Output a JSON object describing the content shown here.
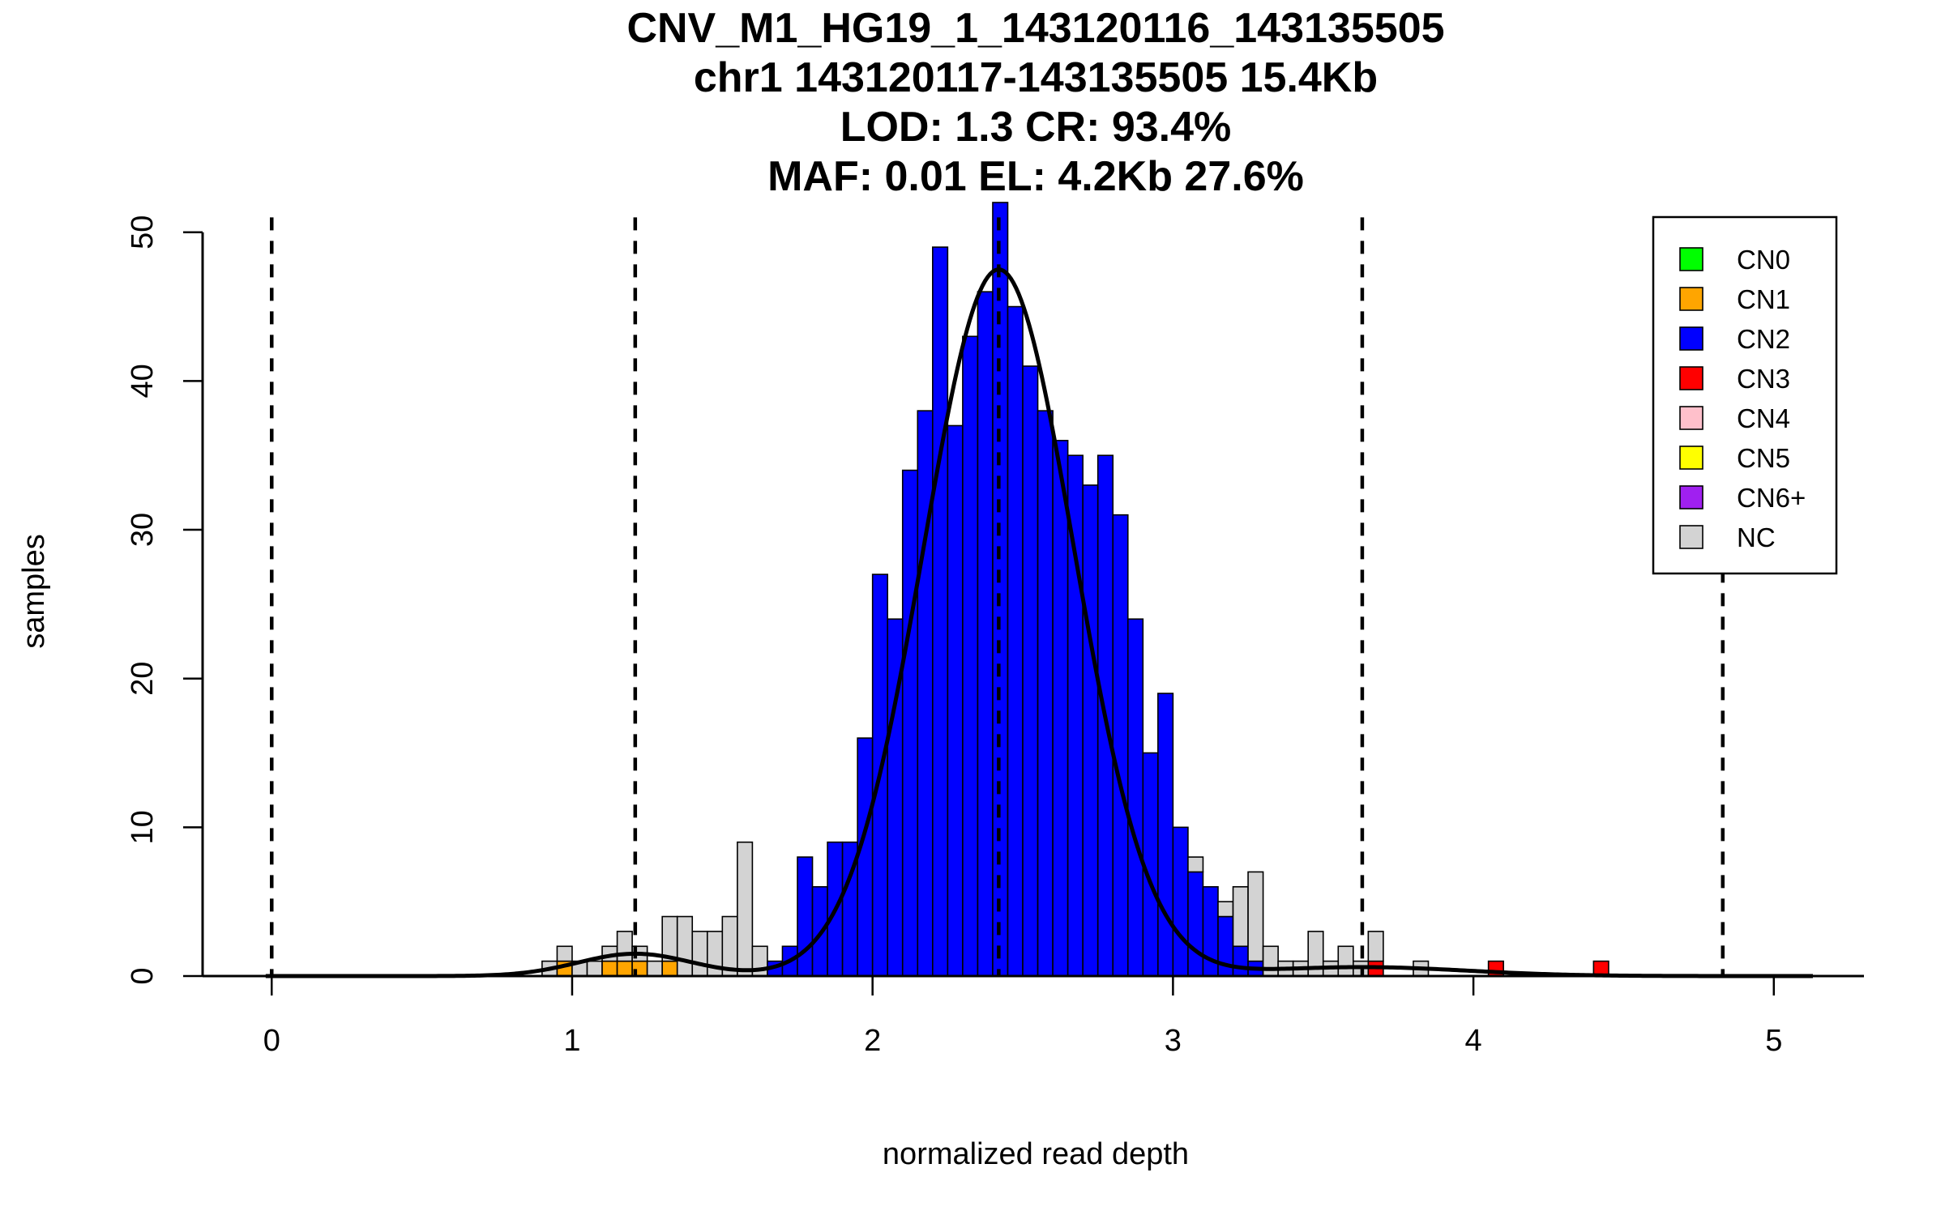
{
  "chart_data": {
    "type": "histogram",
    "title_lines": [
      "CNV_M1_HG19_1_143120116_143135505",
      "chr1 143120117-143135505 15.4Kb",
      "LOD: 1.3 CR: 93.4%",
      "MAF: 0.01 EL: 4.2Kb 27.6%"
    ],
    "xlabel": "normalized read depth",
    "ylabel": "samples",
    "xlim": [
      -0.23,
      5.3
    ],
    "ylim": [
      0,
      52
    ],
    "xticks": [
      0,
      1,
      2,
      3,
      4,
      5
    ],
    "yticks": [
      0,
      10,
      20,
      30,
      40,
      50
    ],
    "bin_width": 0.05,
    "colors": {
      "CN0": "#00ff00",
      "CN1": "#ffa500",
      "CN2": "#0000ff",
      "CN3": "#ff0000",
      "CN4": "#ffc0cb",
      "CN5": "#ffff00",
      "CN6+": "#a020f0",
      "NC": "#d3d3d3"
    },
    "legend": {
      "position": "top-right",
      "entries": [
        "CN0",
        "CN1",
        "CN2",
        "CN3",
        "CN4",
        "CN5",
        "CN6+",
        "NC"
      ]
    },
    "vlines": [
      0,
      1.21,
      2.42,
      3.63,
      4.83
    ],
    "bins": [
      {
        "x0": 0.9,
        "counts": {
          "NC": 1
        }
      },
      {
        "x0": 0.95,
        "counts": {
          "CN1": 1,
          "NC": 1
        }
      },
      {
        "x0": 1.0,
        "counts": {
          "NC": 1
        }
      },
      {
        "x0": 1.05,
        "counts": {
          "NC": 1
        }
      },
      {
        "x0": 1.1,
        "counts": {
          "CN1": 1,
          "NC": 1
        }
      },
      {
        "x0": 1.15,
        "counts": {
          "CN1": 1,
          "NC": 2
        }
      },
      {
        "x0": 1.2,
        "counts": {
          "CN1": 1,
          "NC": 1
        }
      },
      {
        "x0": 1.25,
        "counts": {
          "NC": 1
        }
      },
      {
        "x0": 1.3,
        "counts": {
          "CN1": 1,
          "NC": 3
        }
      },
      {
        "x0": 1.35,
        "counts": {
          "NC": 4
        }
      },
      {
        "x0": 1.4,
        "counts": {
          "NC": 3
        }
      },
      {
        "x0": 1.45,
        "counts": {
          "NC": 3
        }
      },
      {
        "x0": 1.5,
        "counts": {
          "NC": 4
        }
      },
      {
        "x0": 1.55,
        "counts": {
          "NC": 9
        }
      },
      {
        "x0": 1.6,
        "counts": {
          "NC": 2
        }
      },
      {
        "x0": 1.65,
        "counts": {
          "CN2": 1
        }
      },
      {
        "x0": 1.7,
        "counts": {
          "CN2": 2
        }
      },
      {
        "x0": 1.75,
        "counts": {
          "CN2": 8
        }
      },
      {
        "x0": 1.8,
        "counts": {
          "CN2": 6
        }
      },
      {
        "x0": 1.85,
        "counts": {
          "CN2": 9
        }
      },
      {
        "x0": 1.9,
        "counts": {
          "CN2": 9
        }
      },
      {
        "x0": 1.95,
        "counts": {
          "CN2": 16
        }
      },
      {
        "x0": 2.0,
        "counts": {
          "CN2": 27
        }
      },
      {
        "x0": 2.05,
        "counts": {
          "CN2": 24
        }
      },
      {
        "x0": 2.1,
        "counts": {
          "CN2": 34
        }
      },
      {
        "x0": 2.15,
        "counts": {
          "CN2": 38
        }
      },
      {
        "x0": 2.2,
        "counts": {
          "CN2": 49
        }
      },
      {
        "x0": 2.25,
        "counts": {
          "CN2": 37
        }
      },
      {
        "x0": 2.3,
        "counts": {
          "CN2": 43
        }
      },
      {
        "x0": 2.35,
        "counts": {
          "CN2": 46
        }
      },
      {
        "x0": 2.4,
        "counts": {
          "CN2": 52
        }
      },
      {
        "x0": 2.45,
        "counts": {
          "CN2": 45
        }
      },
      {
        "x0": 2.5,
        "counts": {
          "CN2": 41
        }
      },
      {
        "x0": 2.55,
        "counts": {
          "CN2": 38
        }
      },
      {
        "x0": 2.6,
        "counts": {
          "CN2": 36
        }
      },
      {
        "x0": 2.65,
        "counts": {
          "CN2": 35
        }
      },
      {
        "x0": 2.7,
        "counts": {
          "CN2": 33
        }
      },
      {
        "x0": 2.75,
        "counts": {
          "CN2": 35
        }
      },
      {
        "x0": 2.8,
        "counts": {
          "CN2": 31
        }
      },
      {
        "x0": 2.85,
        "counts": {
          "CN2": 24
        }
      },
      {
        "x0": 2.9,
        "counts": {
          "CN2": 15
        }
      },
      {
        "x0": 2.95,
        "counts": {
          "CN2": 19
        }
      },
      {
        "x0": 3.0,
        "counts": {
          "CN2": 10
        }
      },
      {
        "x0": 3.05,
        "counts": {
          "CN2": 7,
          "NC": 1
        }
      },
      {
        "x0": 3.1,
        "counts": {
          "CN2": 6
        }
      },
      {
        "x0": 3.15,
        "counts": {
          "CN2": 4,
          "NC": 1
        }
      },
      {
        "x0": 3.2,
        "counts": {
          "CN2": 2,
          "NC": 4
        }
      },
      {
        "x0": 3.25,
        "counts": {
          "CN2": 1,
          "NC": 6
        }
      },
      {
        "x0": 3.3,
        "counts": {
          "NC": 2
        }
      },
      {
        "x0": 3.35,
        "counts": {
          "NC": 1
        }
      },
      {
        "x0": 3.4,
        "counts": {
          "NC": 1
        }
      },
      {
        "x0": 3.45,
        "counts": {
          "NC": 3
        }
      },
      {
        "x0": 3.5,
        "counts": {
          "NC": 1
        }
      },
      {
        "x0": 3.55,
        "counts": {
          "NC": 2
        }
      },
      {
        "x0": 3.6,
        "counts": {
          "NC": 1
        }
      },
      {
        "x0": 3.65,
        "counts": {
          "CN3": 1,
          "NC": 2
        }
      },
      {
        "x0": 3.8,
        "counts": {
          "NC": 1
        }
      },
      {
        "x0": 4.05,
        "counts": {
          "CN3": 1
        }
      },
      {
        "x0": 4.4,
        "counts": {
          "CN3": 1
        }
      }
    ],
    "density_curve": {
      "x_range": [
        -0.02,
        5.13
      ],
      "components": [
        {
          "label": "CN1",
          "mean": 1.21,
          "sd": 0.19,
          "peak": 1.5
        },
        {
          "label": "CN2",
          "mean": 2.42,
          "sd": 0.25,
          "peak": 47.5
        },
        {
          "label": "CN3",
          "mean": 3.63,
          "sd": 0.35,
          "peak": 0.6
        }
      ]
    }
  }
}
